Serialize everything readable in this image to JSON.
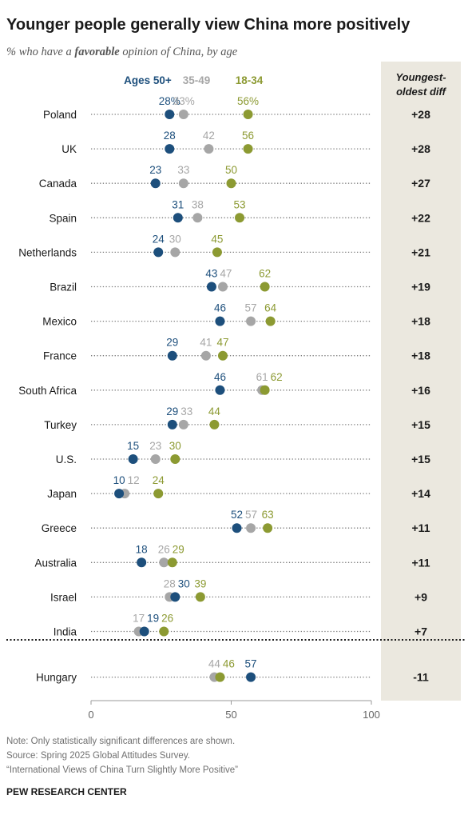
{
  "title": "Younger people generally view China more positively",
  "subtitle_prefix": "% who have a ",
  "subtitle_emph": "favorable",
  "subtitle_suffix": " opinion of China, by age",
  "notes": [
    "Note: Only statistically significant differences are shown.",
    "Source: Spring 2025 Global Attitudes Survey.",
    "“International Views of China Turn Slightly More Positive”"
  ],
  "source_org": "PEW RESEARCH CENTER",
  "colors": {
    "ages_50_plus": "#1d4f7c",
    "ages_35_49": "#a6a6a6",
    "ages_18_34": "#8c9a32",
    "diff_panel": "#ebe8df"
  },
  "chart_data": {
    "type": "dot",
    "xlim": [
      0,
      100
    ],
    "xticks": [
      "0",
      "50",
      "100"
    ],
    "legend": {
      "placement": "top",
      "entries": [
        "Ages 50+",
        "35-49",
        "18-34"
      ]
    },
    "diff_header": [
      "Youngest-",
      "oldest diff"
    ],
    "categories": [
      "Poland",
      "UK",
      "Canada",
      "Spain",
      "Netherlands",
      "Brazil",
      "Mexico",
      "France",
      "South Africa",
      "Turkey",
      "U.S.",
      "Japan",
      "Greece",
      "Australia",
      "Israel",
      "India",
      "Hungary"
    ],
    "series": [
      {
        "name": "Ages 50+",
        "values": [
          28,
          28,
          23,
          31,
          24,
          43,
          46,
          29,
          46,
          29,
          15,
          10,
          52,
          18,
          30,
          19,
          57
        ]
      },
      {
        "name": "35-49",
        "values": [
          33,
          42,
          33,
          38,
          30,
          47,
          57,
          41,
          61,
          33,
          23,
          12,
          57,
          26,
          28,
          17,
          44
        ]
      },
      {
        "name": "18-34",
        "values": [
          56,
          56,
          50,
          53,
          45,
          62,
          64,
          47,
          62,
          44,
          30,
          24,
          63,
          29,
          39,
          26,
          46
        ]
      }
    ],
    "labels": [
      [
        "28%",
        "33%",
        "56%"
      ],
      [
        "28",
        "42",
        "56"
      ],
      [
        "23",
        "33",
        "50"
      ],
      [
        "31",
        "38",
        "53"
      ],
      [
        "24",
        "30",
        "45"
      ],
      [
        "43",
        "47",
        "62"
      ],
      [
        "46",
        "57",
        "64"
      ],
      [
        "29",
        "41",
        "47"
      ],
      [
        "46",
        "61",
        "62"
      ],
      [
        "29",
        "33",
        "44"
      ],
      [
        "15",
        "23",
        "30"
      ],
      [
        "10",
        "12",
        "24"
      ],
      [
        "52",
        "57",
        "63"
      ],
      [
        "18",
        "26",
        "29"
      ],
      [
        "30",
        "28",
        "39"
      ],
      [
        "19",
        "17",
        "26"
      ],
      [
        "57",
        "44",
        "46"
      ]
    ],
    "diffs": [
      "+28",
      "+28",
      "+27",
      "+22",
      "+21",
      "+19",
      "+18",
      "+18",
      "+16",
      "+15",
      "+15",
      "+14",
      "+11",
      "+11",
      "+9",
      "+7",
      "-11"
    ]
  }
}
